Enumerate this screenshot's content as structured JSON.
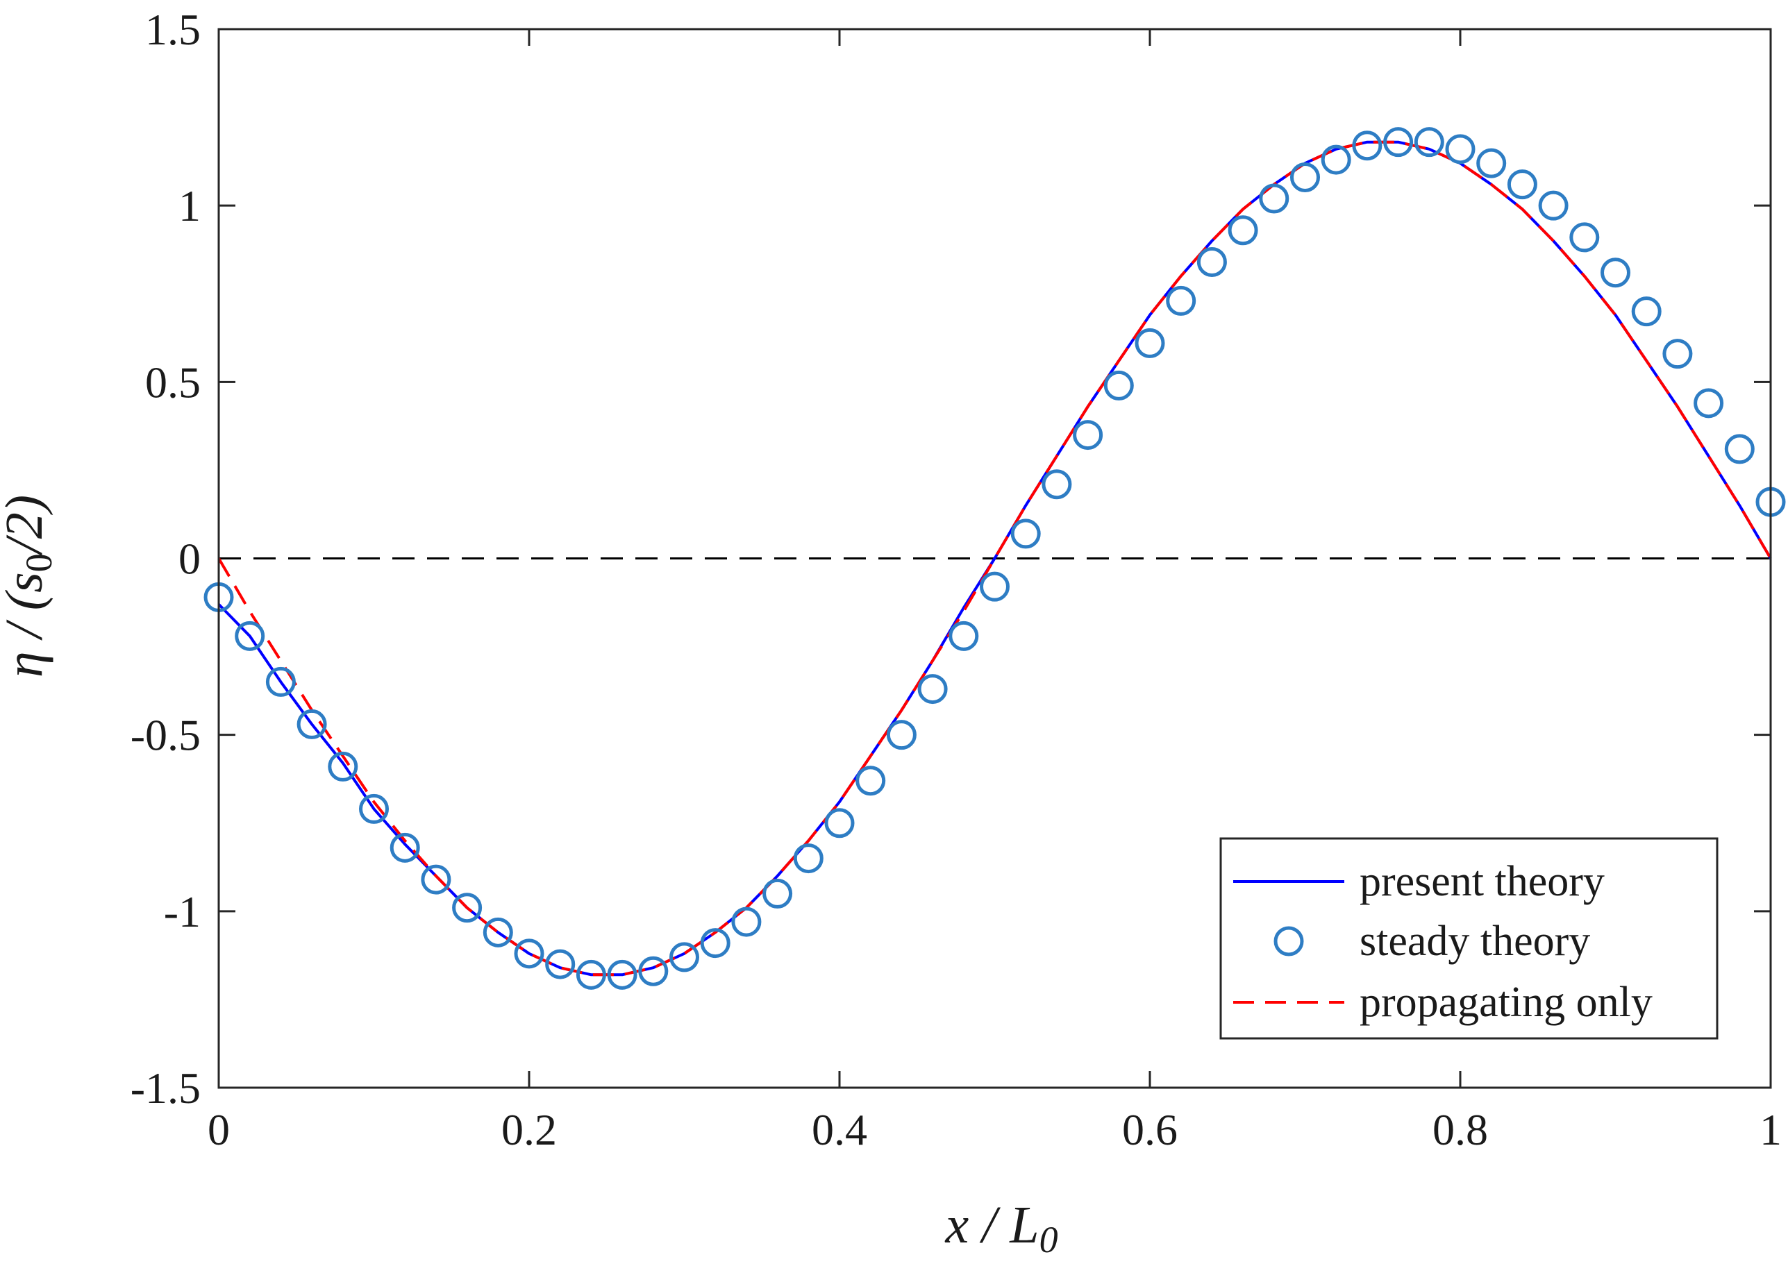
{
  "chart_data": {
    "type": "line",
    "title": "",
    "xlabel": "x / L0",
    "xlabel_parts": {
      "main": "x / L",
      "sub": "0"
    },
    "ylabel": "η / (s0/2)",
    "ylabel_parts": {
      "a": "η / (s",
      "sub": "0",
      "b": "/2)"
    },
    "xlim": [
      0,
      1
    ],
    "ylim": [
      -1.5,
      1.5
    ],
    "xticks": [
      0,
      0.2,
      0.4,
      0.6,
      0.8,
      1
    ],
    "xtick_labels": [
      "0",
      "0.2",
      "0.4",
      "0.6",
      "0.8",
      "1"
    ],
    "yticks": [
      -1.5,
      -1,
      -0.5,
      0,
      0.5,
      1,
      1.5
    ],
    "ytick_labels": [
      "-1.5",
      "-1",
      "-0.5",
      "0",
      "0.5",
      "1",
      "1.5"
    ],
    "zero_line": {
      "y": 0,
      "color": "#000000",
      "style": "dashed"
    },
    "legend": {
      "position": "bottom-right",
      "entries": [
        "present theory",
        "steady theory",
        "propagating only"
      ]
    },
    "series": [
      {
        "name": "present theory",
        "style": "line",
        "color": "#0000ff",
        "x": [
          0,
          0.02,
          0.04,
          0.06,
          0.08,
          0.1,
          0.12,
          0.14,
          0.16,
          0.18,
          0.2,
          0.22,
          0.24,
          0.25,
          0.26,
          0.28,
          0.3,
          0.32,
          0.34,
          0.36,
          0.38,
          0.4,
          0.42,
          0.44,
          0.46,
          0.48,
          0.5,
          0.52,
          0.54,
          0.56,
          0.58,
          0.6,
          0.62,
          0.64,
          0.66,
          0.68,
          0.7,
          0.72,
          0.74,
          0.75,
          0.76,
          0.78,
          0.8,
          0.82,
          0.84,
          0.86,
          0.88,
          0.9,
          0.92,
          0.94,
          0.96,
          0.98,
          1.0
        ],
        "y": [
          -0.13,
          -0.22,
          -0.35,
          -0.47,
          -0.58,
          -0.71,
          -0.81,
          -0.9,
          -0.99,
          -1.06,
          -1.12,
          -1.16,
          -1.18,
          -1.18,
          -1.18,
          -1.16,
          -1.12,
          -1.06,
          -0.99,
          -0.9,
          -0.8,
          -0.69,
          -0.56,
          -0.43,
          -0.29,
          -0.14,
          0.0,
          0.15,
          0.29,
          0.43,
          0.56,
          0.69,
          0.8,
          0.9,
          0.99,
          1.06,
          1.12,
          1.16,
          1.18,
          1.18,
          1.18,
          1.16,
          1.12,
          1.06,
          0.99,
          0.9,
          0.8,
          0.69,
          0.56,
          0.43,
          0.29,
          0.15,
          0.0
        ]
      },
      {
        "name": "steady theory",
        "style": "marker",
        "marker": "circle",
        "color": "#2e7dc4",
        "x": [
          0,
          0.02,
          0.04,
          0.06,
          0.08,
          0.1,
          0.12,
          0.14,
          0.16,
          0.18,
          0.2,
          0.22,
          0.24,
          0.26,
          0.28,
          0.3,
          0.32,
          0.34,
          0.36,
          0.38,
          0.4,
          0.42,
          0.44,
          0.46,
          0.48,
          0.5,
          0.52,
          0.54,
          0.56,
          0.58,
          0.6,
          0.62,
          0.64,
          0.66,
          0.68,
          0.7,
          0.72,
          0.74,
          0.76,
          0.78,
          0.8,
          0.82,
          0.84,
          0.86,
          0.88,
          0.9,
          0.92,
          0.94,
          0.96,
          0.98,
          1.0
        ],
        "y": [
          -0.11,
          -0.22,
          -0.35,
          -0.47,
          -0.59,
          -0.71,
          -0.82,
          -0.91,
          -0.99,
          -1.06,
          -1.12,
          -1.15,
          -1.18,
          -1.18,
          -1.17,
          -1.13,
          -1.09,
          -1.03,
          -0.95,
          -0.85,
          -0.75,
          -0.63,
          -0.5,
          -0.37,
          -0.22,
          -0.08,
          0.07,
          0.21,
          0.35,
          0.49,
          0.61,
          0.73,
          0.84,
          0.93,
          1.02,
          1.08,
          1.13,
          1.17,
          1.18,
          1.18,
          1.16,
          1.12,
          1.06,
          1.0,
          0.91,
          0.81,
          0.7,
          0.58,
          0.44,
          0.31,
          0.16
        ]
      },
      {
        "name": "propagating only",
        "style": "dashed",
        "color": "#ff0000",
        "x": [
          0,
          0.02,
          0.04,
          0.06,
          0.08,
          0.1,
          0.12,
          0.14,
          0.16,
          0.18,
          0.2,
          0.22,
          0.24,
          0.25,
          0.26,
          0.28,
          0.3,
          0.32,
          0.34,
          0.36,
          0.38,
          0.4,
          0.42,
          0.44,
          0.46,
          0.48,
          0.5,
          0.52,
          0.54,
          0.56,
          0.58,
          0.6,
          0.62,
          0.64,
          0.66,
          0.68,
          0.7,
          0.72,
          0.74,
          0.75,
          0.76,
          0.78,
          0.8,
          0.82,
          0.84,
          0.86,
          0.88,
          0.9,
          0.92,
          0.94,
          0.96,
          0.98,
          1.0
        ],
        "y": [
          0.0,
          -0.15,
          -0.29,
          -0.43,
          -0.56,
          -0.69,
          -0.8,
          -0.9,
          -0.99,
          -1.06,
          -1.12,
          -1.16,
          -1.18,
          -1.18,
          -1.18,
          -1.16,
          -1.12,
          -1.06,
          -0.99,
          -0.9,
          -0.8,
          -0.69,
          -0.56,
          -0.43,
          -0.29,
          -0.15,
          0.0,
          0.15,
          0.29,
          0.43,
          0.56,
          0.69,
          0.8,
          0.9,
          0.99,
          1.06,
          1.12,
          1.16,
          1.18,
          1.18,
          1.18,
          1.16,
          1.12,
          1.06,
          0.99,
          0.9,
          0.8,
          0.69,
          0.56,
          0.43,
          0.29,
          0.15,
          0.0
        ]
      }
    ]
  }
}
